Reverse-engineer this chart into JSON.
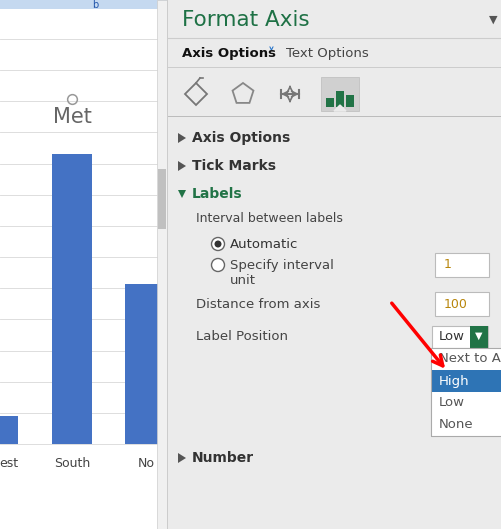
{
  "title": "Format Axis",
  "axis_options_tab": "Axis Options",
  "text_options_tab": "Text Options",
  "section_axis_options": "Axis Options",
  "section_tick_marks": "Tick Marks",
  "section_labels": "Labels",
  "labels_color": "#217346",
  "interval_text": "Interval between labels",
  "automatic_text": "Automatic",
  "specify_text": "Specify interval\nunit",
  "specify_value": "1",
  "distance_text": "Distance from axis",
  "distance_value": "100",
  "label_position_text": "Label Position",
  "label_position_value": "Low",
  "number_text": "Number",
  "dropdown_items": [
    "Next to Axis",
    "High",
    "Low",
    "None"
  ],
  "dropdown_selected": "High",
  "dropdown_selected_color": "#2E74B5",
  "bg_color": "#ebebeb",
  "left_panel_bg": "#ffffff",
  "bar_color": "#4472C4",
  "bar_labels": [
    "est",
    "South",
    "No"
  ],
  "figsize": [
    5.02,
    5.29
  ],
  "dpi": 100
}
